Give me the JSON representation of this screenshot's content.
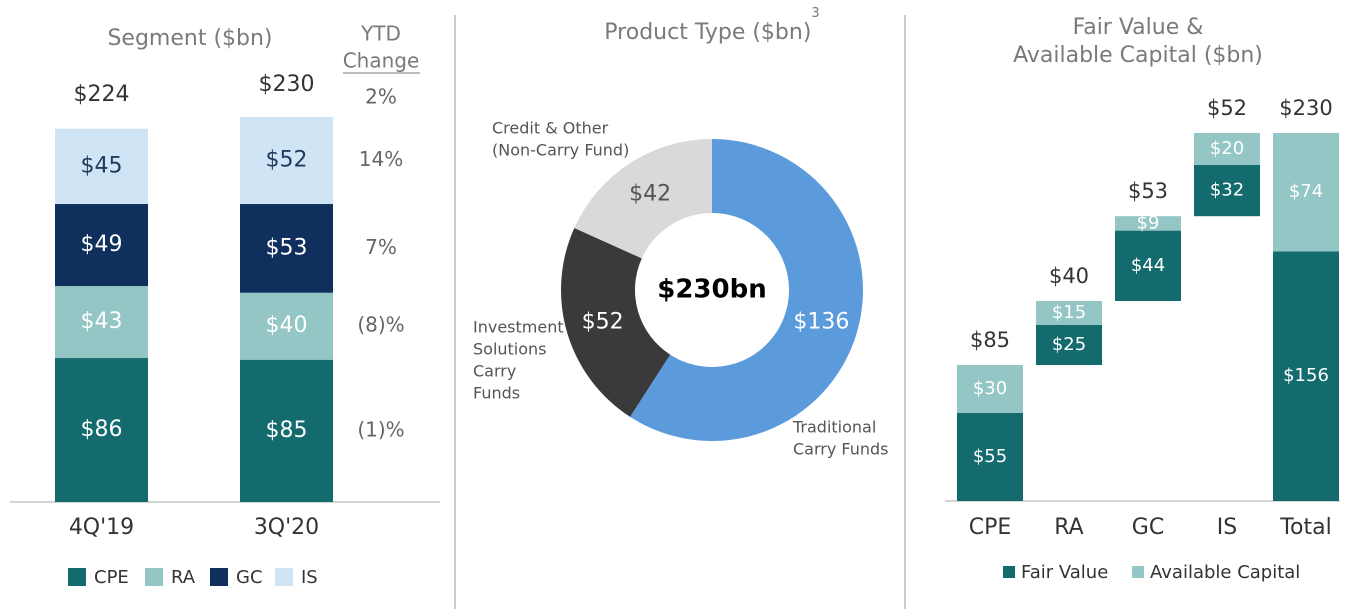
{
  "chart_data": [
    {
      "type": "stacked_bar",
      "title": "Segment ($bn)",
      "categories": [
        "4Q'19",
        "3Q'20"
      ],
      "series": [
        {
          "name": "CPE",
          "color": "#136b6e",
          "label_color": "#ffffff",
          "values": [
            86,
            85
          ],
          "value_labels": [
            "$86",
            "$85"
          ]
        },
        {
          "name": "RA",
          "color": "#93c6c4",
          "label_color": "#ffffff",
          "values": [
            43,
            40
          ],
          "value_labels": [
            "$43",
            "$40"
          ]
        },
        {
          "name": "GC",
          "color": "#0f2f5c",
          "label_color": "#ffffff",
          "values": [
            49,
            53
          ],
          "value_labels": [
            "$49",
            "$53"
          ]
        },
        {
          "name": "IS",
          "color": "#cfe5f5",
          "label_color": "#1f3b5c",
          "values": [
            45,
            52
          ],
          "value_labels": [
            "$45",
            "$52"
          ]
        }
      ],
      "totals": [
        224,
        230
      ],
      "total_labels": [
        "$224",
        "$230"
      ],
      "ytd_change": {
        "title": [
          "YTD",
          "Change"
        ],
        "values": [
          2,
          14,
          7,
          -8,
          -1
        ],
        "value_labels": [
          "2%",
          "14%",
          "7%",
          "(8)%",
          "(1)%"
        ]
      }
    },
    {
      "type": "donut",
      "title": "Product Type ($bn)",
      "title_note": "3",
      "center": {
        "value": 230,
        "label": "$230bn"
      },
      "categories": [
        [
          "Traditional",
          "Carry Funds"
        ],
        [
          "Investment",
          "Solutions",
          "Carry",
          "Funds"
        ],
        [
          "Credit & Other",
          "(Non-Carry Fund)"
        ]
      ],
      "values": [
        136,
        52,
        42
      ],
      "value_labels": [
        "$136",
        "$52",
        "$42"
      ],
      "colors": [
        "#5b9bdc",
        "#3a3a3c",
        "#d9d9d9"
      ],
      "label_colors": [
        "#ffffff",
        "#ffffff",
        "#555555"
      ]
    },
    {
      "type": "waterfall",
      "title": [
        "Fair Value &",
        "Available Capital ($bn)"
      ],
      "categories": [
        "CPE",
        "RA",
        "GC",
        "IS",
        "Total"
      ],
      "is_total": [
        false,
        false,
        false,
        false,
        true
      ],
      "series": [
        {
          "name": "Fair Value",
          "color": "#136b6e",
          "values": [
            55,
            25,
            44,
            32,
            156
          ],
          "value_labels": [
            "$55",
            "$25",
            "$44",
            "$32",
            "$156"
          ]
        },
        {
          "name": "Available Capital",
          "color": "#93c6c4",
          "values": [
            30,
            15,
            9,
            20,
            74
          ],
          "value_labels": [
            "$30",
            "$15",
            "$9",
            "$20",
            "$74"
          ]
        }
      ],
      "totals": [
        85,
        40,
        53,
        52,
        230
      ],
      "total_labels": [
        "$85",
        "$40",
        "$53",
        "$52",
        "$230"
      ]
    }
  ]
}
